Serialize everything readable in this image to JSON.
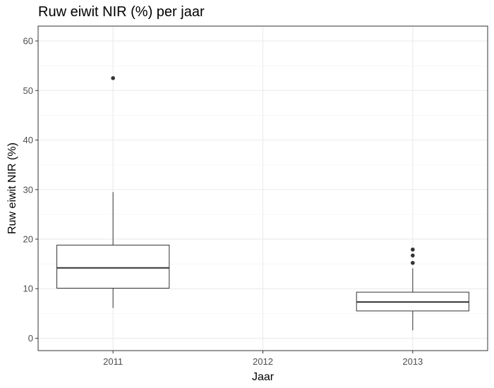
{
  "chart_data": {
    "type": "boxplot",
    "title": "Ruw eiwit NIR (%) per jaar",
    "xlabel": "Jaar",
    "ylabel": "Ruw eiwit NIR (%)",
    "categories": [
      "2011",
      "2012",
      "2013"
    ],
    "ylim": [
      -2.5,
      63
    ],
    "yticks": [
      0,
      10,
      20,
      30,
      40,
      50,
      60
    ],
    "grid": true,
    "boxes": [
      {
        "category": "2011",
        "q1": 10.1,
        "median": 14.2,
        "q3": 18.8,
        "whisker_low": 6.1,
        "whisker_high": 29.5,
        "outliers": [
          52.5
        ]
      },
      {
        "category": "2013",
        "q1": 5.5,
        "median": 7.3,
        "q3": 9.3,
        "whisker_low": 1.6,
        "whisker_high": 14.1,
        "outliers": [
          15.2,
          16.7,
          17.9
        ]
      }
    ],
    "colors": {
      "box_fill": "#ffffff",
      "box_stroke": "#333333",
      "point": "#333333",
      "grid_major": "#ebebeb",
      "grid_minor": "#f5f5f5",
      "panel_border": "#333333"
    }
  }
}
